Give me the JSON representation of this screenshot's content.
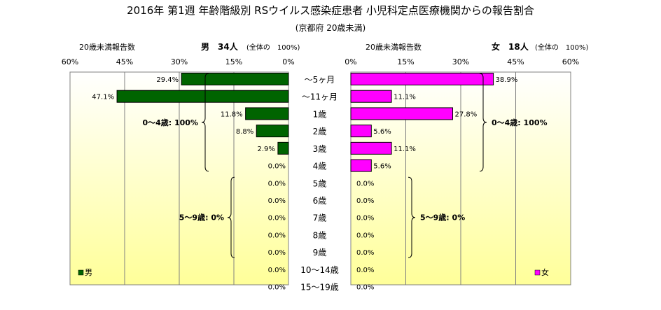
{
  "title": "2016年 第1週 年齢階級別 RSウイルス感染症患者 小児科定点医療機関からの報告割合",
  "subtitle": "(京都府 20歳未満)",
  "left_header": {
    "label": "20歳未満報告数",
    "gender_count": "男　34人",
    "total_note": "(全体の　100%)"
  },
  "right_header": {
    "label": "20歳未満報告数",
    "gender_count": "女　18人",
    "total_note": "(全体の　100%)"
  },
  "colors": {
    "male": "#006400",
    "female": "#ff00ff",
    "panel_top": "#ffffff",
    "panel_bottom": "#ffff99"
  },
  "chart_data": {
    "type": "bar",
    "orientation": "horizontal-butterfly",
    "categories": [
      "～5ヶ月",
      "～11ヶ月",
      "1歳",
      "2歳",
      "3歳",
      "4歳",
      "5歳",
      "6歳",
      "7歳",
      "8歳",
      "9歳",
      "10～14歳",
      "15～19歳"
    ],
    "series": [
      {
        "name": "男",
        "values": [
          29.4,
          47.1,
          11.8,
          8.8,
          2.9,
          0.0,
          0.0,
          0.0,
          0.0,
          0.0,
          0.0,
          0.0,
          0.0
        ],
        "labels": [
          "29.4%",
          "47.1%",
          "11.8%",
          "8.8%",
          "2.9%",
          "0.0%",
          "0.0%",
          "0.0%",
          "0.0%",
          "0.0%",
          "0.0%",
          "0.0%",
          "0.0%"
        ]
      },
      {
        "name": "女",
        "values": [
          38.9,
          11.1,
          27.8,
          5.6,
          11.1,
          5.6,
          0.0,
          0.0,
          0.0,
          0.0,
          0.0,
          0.0,
          0.0
        ],
        "labels": [
          "38.9%",
          "11.1%",
          "27.8%",
          "5.6%",
          "11.1%",
          "5.6%",
          "0.0%",
          "0.0%",
          "0.0%",
          "0.0%",
          "0.0%",
          "0.0%",
          "0.0%"
        ]
      }
    ],
    "xlim": [
      0,
      60
    ],
    "ticks": [
      0,
      15,
      30,
      45,
      60
    ],
    "tick_labels_left": [
      "60%",
      "45%",
      "30%",
      "15%",
      "0%"
    ],
    "tick_labels_right": [
      "0%",
      "15%",
      "30%",
      "45%",
      "60%"
    ],
    "grid": true,
    "legend_left": "男",
    "legend_right": "女",
    "annotations": {
      "left": [
        {
          "text": "0～4歳: 100%",
          "from": 0,
          "to": 5
        },
        {
          "text": "5～9歳: 0%",
          "from": 6,
          "to": 10
        }
      ],
      "right": [
        {
          "text": "0～4歳: 100%",
          "from": 0,
          "to": 5
        },
        {
          "text": "5～9歳: 0%",
          "from": 6,
          "to": 10
        }
      ]
    }
  }
}
